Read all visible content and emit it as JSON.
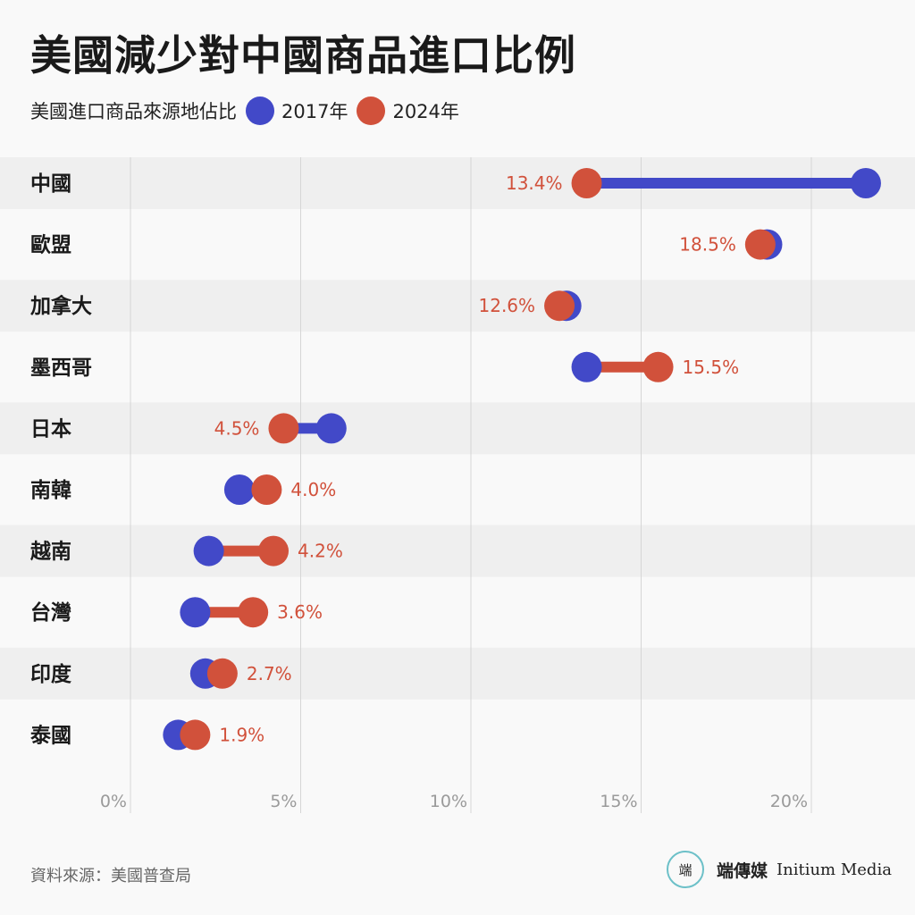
{
  "header": {
    "title": "美國減少對中國商品進口比例",
    "legend_label": "美國進口商品來源地佔比"
  },
  "chart_data": {
    "type": "dumbbell",
    "xlabel": "",
    "ylabel": "",
    "xlim": [
      0,
      22.5
    ],
    "x_ticks": [
      0,
      5,
      10,
      15,
      20
    ],
    "x_tick_labels": [
      "0%",
      "5%",
      "10%",
      "15%",
      "20%"
    ],
    "legend_position": "top-left",
    "grid": true,
    "series": [
      {
        "name": "2017年",
        "color": "#4249c8"
      },
      {
        "name": "2024年",
        "color": "#d1513b"
      }
    ],
    "categories": [
      "中國",
      "歐盟",
      "加拿大",
      "墨西哥",
      "日本",
      "南韓",
      "越南",
      "台灣",
      "印度",
      "泰國"
    ],
    "values_2017": [
      21.6,
      18.7,
      12.8,
      13.4,
      5.9,
      3.2,
      2.3,
      1.9,
      2.2,
      1.4
    ],
    "values_2024": [
      13.4,
      18.5,
      12.6,
      15.5,
      4.5,
      4.0,
      4.2,
      3.6,
      2.7,
      1.9
    ],
    "data_labels": [
      "13.4%",
      "18.5%",
      "12.6%",
      "15.5%",
      "4.5%",
      "4.0%",
      "4.2%",
      "3.6%",
      "2.7%",
      "1.9%"
    ]
  },
  "footer": {
    "source": "資料來源：美國普查局",
    "brand_logo": "端",
    "brand_name": "端傳媒",
    "brand_en": "Initium Media"
  },
  "colors": {
    "y2017": "#4249c8",
    "y2024": "#d1513b",
    "band": "#efefef",
    "grid": "#d6d6d6",
    "tick": "#9a9a9a"
  }
}
